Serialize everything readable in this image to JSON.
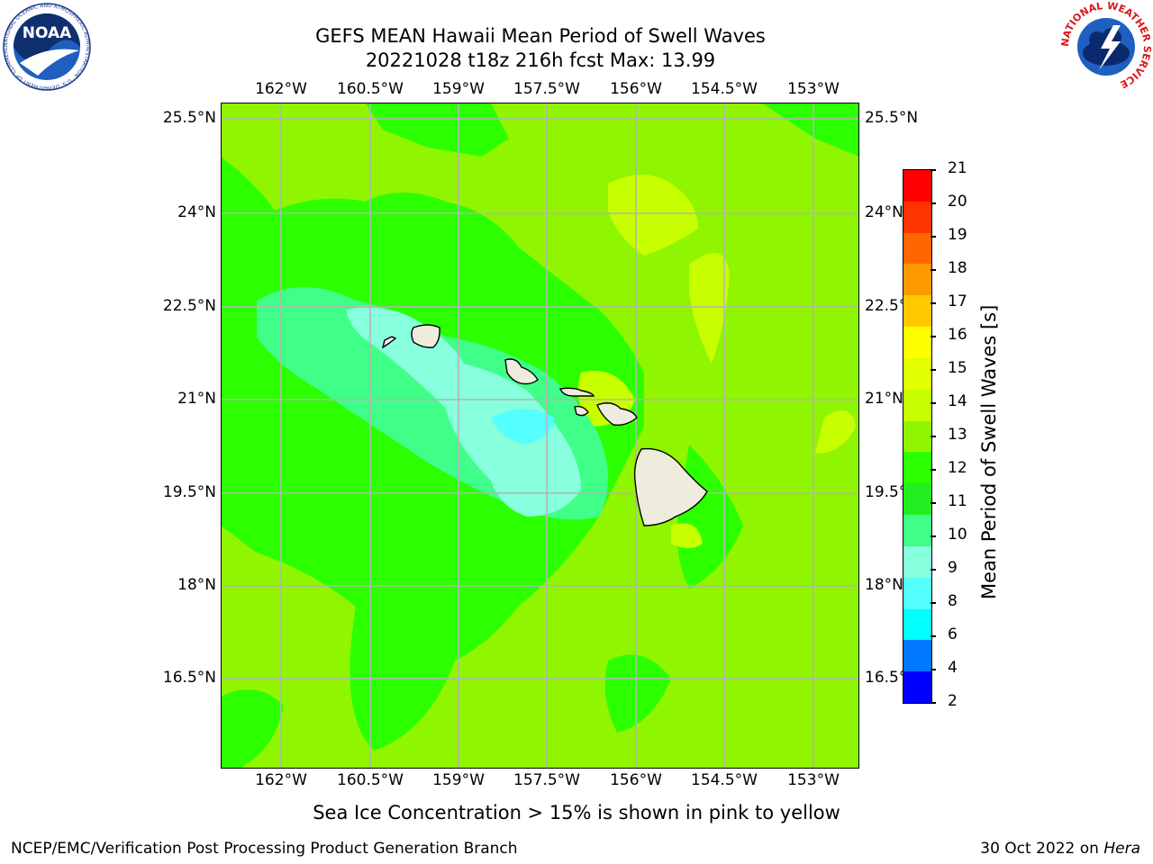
{
  "header": {
    "title_line1": "GEFS MEAN Hawaii Mean Period of Swell Waves",
    "title_line2": "20221028 t18z 216h fcst   Max: 13.99"
  },
  "logos": {
    "left": {
      "text": "NOAA",
      "ring_text": "NATIONAL OCEANIC AND ATMOSPHERIC ADMINISTRATION · U.S. DEPARTMENT OF COMMERCE"
    },
    "right": {
      "ring_text": "NATIONAL WEATHER SERVICE"
    }
  },
  "map": {
    "lon_labels": [
      "162°W",
      "160.5°W",
      "159°W",
      "157.5°W",
      "156°W",
      "154.5°W",
      "153°W"
    ],
    "lat_labels": [
      "25.5°N",
      "24°N",
      "22.5°N",
      "21°N",
      "19.5°N",
      "18°N",
      "16.5°N"
    ],
    "background_color": "#90f500",
    "grid_color": "#b4b4b4"
  },
  "colorbar": {
    "label": "Mean Period of Swell Waves [s]",
    "ticks": [
      "21",
      "20",
      "19",
      "18",
      "17",
      "16",
      "15",
      "14",
      "13",
      "12",
      "11",
      "10",
      "9",
      "8",
      "6",
      "4",
      "2"
    ],
    "colors_top_to_bottom": [
      "#ff0000",
      "#ff3300",
      "#ff6600",
      "#ff9900",
      "#ffc800",
      "#ffff00",
      "#e1ff00",
      "#c8ff00",
      "#90f500",
      "#2bff00",
      "#22ee22",
      "#40ff88",
      "#88ffdd",
      "#55ffff",
      "#00ffff",
      "#0077ff",
      "#0000ff"
    ]
  },
  "footer": {
    "note": "Sea Ice Concentration > 15% is shown in pink to yellow",
    "credit": "NCEP/EMC/Verification Post Processing Product Generation Branch",
    "date": "30 Oct 2022 on",
    "machine": "Hera"
  }
}
